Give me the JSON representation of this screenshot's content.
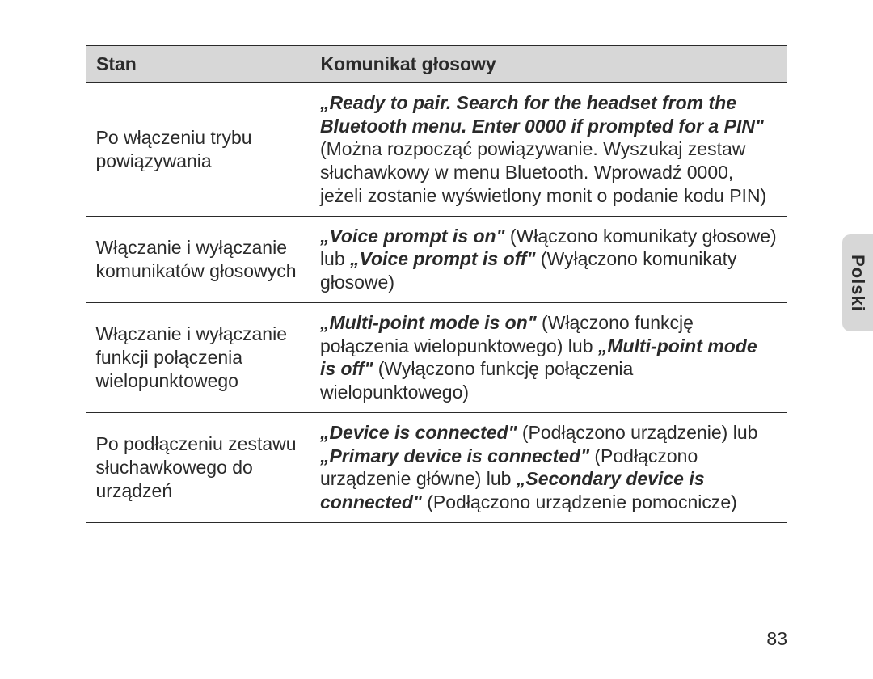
{
  "side_tab": {
    "label": "Polski"
  },
  "page_number": "83",
  "table": {
    "header": {
      "col1": "Stan",
      "col2": "Komunikat głosowy"
    },
    "rows": [
      {
        "col1_plain": "Po włączeniu trybu powiązywania",
        "col2_italic_lead": "„Ready to pair. Search for the headset from the Bluetooth menu. Enter 0000 if prompted for a PIN\"",
        "col2_rest": " (Można rozpocząć powiązywanie. Wyszukaj zestaw słuchawkowy w menu Bluetooth. Wprowadź 0000, jeżeli zostanie wyświetlony monit o podanie kodu PIN)"
      },
      {
        "col1_plain": "Włączanie i wyłączanie komunikatów głosowych",
        "col2_seg1_italic": "„Voice prompt is on\"",
        "col2_seg1_rest": " (Włączono komunikaty głosowe) lub ",
        "col2_seg2_italic": "„Voice prompt is off\"",
        "col2_seg2_rest": " (Wyłączono komunikaty głosowe)"
      },
      {
        "col1_plain": "Włączanie i wyłączanie funkcji połączenia wielopunktowego",
        "col2_seg1_italic": "„Multi-point mode is on\"",
        "col2_seg1_rest": " (Włączono funkcję połączenia wielopunktowego) lub ",
        "col2_seg2_italic": "„Multi-point mode is off\"",
        "col2_seg2_rest": " (Wyłączono funkcję połączenia wielopunktowego)"
      },
      {
        "col1_plain": "Po podłączeniu zestawu słuchawkowego do urządzeń",
        "col2_seg1_italic": "„Device is connected\"",
        "col2_seg1_rest": " (Podłączono urządzenie) lub ",
        "col2_seg2_italic": "„Primary device is connected\"",
        "col2_seg2_rest": " (Podłączono urządzenie główne) lub ",
        "col2_seg3_italic": "„Secondary device is connected\"",
        "col2_seg3_rest": " (Podłączono urządzenie pomocnicze)"
      }
    ]
  }
}
